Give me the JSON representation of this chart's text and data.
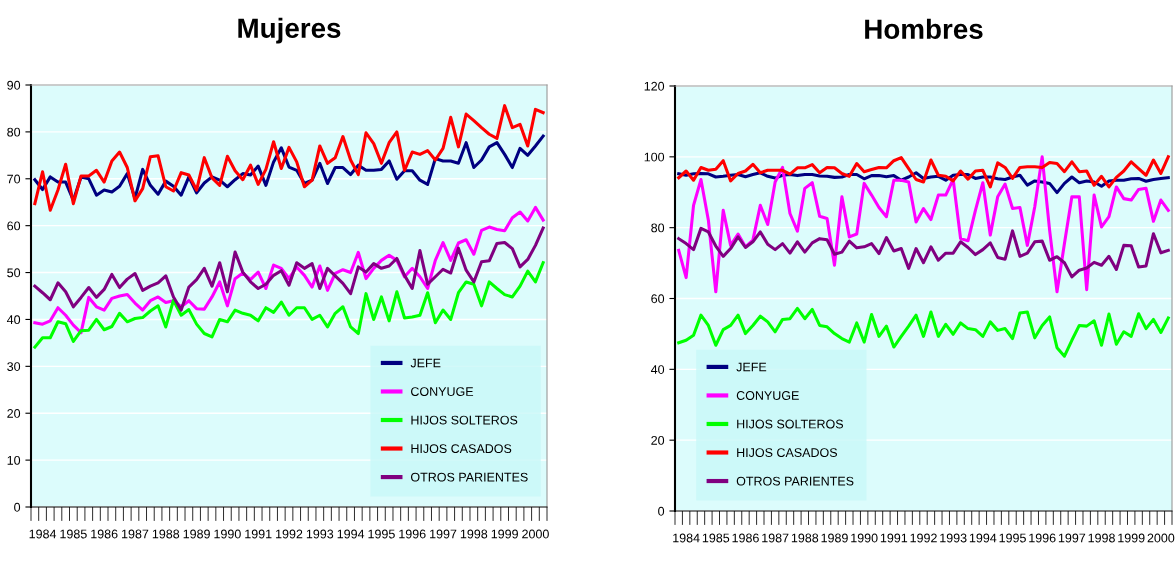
{
  "chart_data": [
    {
      "type": "line",
      "title": "Mujeres",
      "categories": [
        null,
        "1984",
        null,
        null,
        null,
        "1985",
        null,
        null,
        null,
        "1986",
        null,
        null,
        null,
        "1987",
        null,
        null,
        null,
        "1988",
        null,
        null,
        null,
        "1989",
        null,
        null,
        null,
        "1990",
        null,
        null,
        null,
        "1991",
        null,
        null,
        null,
        "1992",
        null,
        null,
        null,
        "1993",
        null,
        null,
        null,
        "1994",
        null,
        null,
        null,
        "1995",
        null,
        null,
        null,
        "1996",
        null,
        null,
        null,
        "1997",
        null,
        null,
        null,
        "1998",
        null,
        null,
        null,
        "1999",
        null,
        null,
        null,
        "2000",
        null
      ],
      "ylim": [
        0,
        90
      ],
      "yticks": [
        0,
        10,
        20,
        30,
        40,
        50,
        60,
        70,
        80,
        90
      ],
      "grid": "y",
      "legend": "bottom right",
      "series": [
        {
          "name": "JEFE",
          "color": "#000080",
          "values": [
            69.8,
            67.7,
            70.4,
            69.3,
            69.3,
            65.4,
            70.4,
            70,
            66.5,
            67.6,
            67.2,
            68.4,
            71.1,
            65.8,
            72,
            68.6,
            66.7,
            69.5,
            68.4,
            66.5,
            70.4,
            67,
            69.1,
            70.4,
            69.7,
            68.3,
            69.8,
            71.1,
            70.8,
            72.7,
            68.6,
            73.6,
            76.6,
            72.5,
            71.8,
            69,
            69.7,
            73.3,
            69,
            72.4,
            72.4,
            70.9,
            72.9,
            71.8,
            71.8,
            72,
            73.8,
            69.9,
            71.7,
            71.7,
            69.7,
            68.8,
            74.3,
            73.8,
            73.8,
            73.3,
            77.7,
            72.4,
            74,
            76.8,
            77.7,
            75.2,
            72.4,
            76.5,
            75,
            77,
            79.1
          ]
        },
        {
          "name": "CONYUGE",
          "color": "#ff00ff",
          "values": [
            39.3,
            39,
            39.7,
            42.5,
            40.9,
            38.8,
            37.2,
            44.7,
            42.7,
            42,
            44.5,
            45,
            45.3,
            43.5,
            42,
            44,
            44.8,
            43.6,
            44,
            42.7,
            44,
            42.3,
            42.2,
            44.8,
            48,
            42.9,
            48.7,
            49.9,
            48.5,
            50.1,
            46.6,
            51.6,
            50.9,
            48.7,
            51.2,
            49.4,
            46.9,
            51.4,
            46.2,
            49.8,
            50.6,
            50,
            54.3,
            48.7,
            50.9,
            52.6,
            53.7,
            52.6,
            49.1,
            50.9,
            49.1,
            46.6,
            52.6,
            56.4,
            52.6,
            56.3,
            57,
            53.9,
            59,
            59.7,
            59.2,
            58.9,
            61.7,
            62.9,
            61,
            63.9,
            61.2
          ]
        },
        {
          "name": "HIJOS SOLTEROS",
          "color": "#00ff00",
          "values": [
            34.1,
            36.1,
            36.1,
            39.5,
            39.1,
            35.3,
            37.6,
            37.7,
            40,
            37.8,
            38.5,
            41.3,
            39.5,
            40.2,
            40.4,
            41.8,
            42.9,
            38.4,
            44.1,
            40.9,
            42.1,
            39,
            37,
            36.3,
            40,
            39.5,
            42,
            41.3,
            40.9,
            39.7,
            42.5,
            41.5,
            43.7,
            40.9,
            42.5,
            42.5,
            40,
            40.9,
            38.4,
            41.3,
            42.7,
            38.4,
            37,
            45.5,
            40,
            44.8,
            39.7,
            45.9,
            40.3,
            40.5,
            40.9,
            45.7,
            39.3,
            42,
            40,
            45.7,
            48,
            47.5,
            42.9,
            48,
            46.6,
            45.3,
            44.8,
            47.1,
            50.3,
            48,
            52.1
          ]
        },
        {
          "name": "HIJOS CASADOS",
          "color": "#ff0000",
          "values": [
            64.7,
            71.5,
            63.3,
            67.6,
            73.1,
            64.7,
            70.6,
            70.6,
            71.8,
            69.3,
            73.8,
            75.7,
            72.4,
            65.3,
            67.9,
            74.7,
            74.9,
            68.3,
            67.4,
            71.3,
            70.8,
            67.6,
            74.5,
            70.2,
            68.6,
            74.8,
            71.7,
            69.8,
            72.9,
            68.8,
            72,
            77.9,
            72.2,
            76.7,
            73.6,
            68.3,
            69.7,
            77,
            73.3,
            74.5,
            79,
            74,
            70.9,
            79.8,
            77.5,
            73.3,
            77.7,
            80,
            71.8,
            75.7,
            75.2,
            76,
            74,
            76.5,
            83.1,
            76.8,
            83.8,
            82.4,
            80.9,
            79.5,
            78.6,
            85.6,
            80.9,
            81.6,
            77,
            84.8,
            84.1
          ]
        },
        {
          "name": "OTROS PARIENTES",
          "color": "#800080",
          "values": [
            47.1,
            45.7,
            44.2,
            47.8,
            45.9,
            42.7,
            44.7,
            46.8,
            44.7,
            46.4,
            49.6,
            46.8,
            48.6,
            49.8,
            46.2,
            47.1,
            47.8,
            49.3,
            44.8,
            42,
            46.9,
            48.5,
            50.9,
            47.1,
            52.1,
            45.9,
            54.4,
            50.1,
            48,
            46.6,
            47.5,
            49.4,
            50.4,
            47.3,
            52.1,
            50.9,
            51.9,
            46.6,
            50.9,
            49.3,
            47.7,
            45.5,
            51.2,
            50.1,
            51.9,
            50.9,
            51.4,
            53,
            49.4,
            46.6,
            54.7,
            47.5,
            49.1,
            50.7,
            49.9,
            55.2,
            50.5,
            48,
            52.3,
            52.5,
            56.2,
            56.4,
            55.1,
            51.2,
            52.8,
            55.8,
            59.5
          ]
        }
      ]
    },
    {
      "type": "line",
      "title": "Hombres",
      "categories": [
        null,
        "1984",
        null,
        null,
        null,
        "1985",
        null,
        null,
        null,
        "1986",
        null,
        null,
        null,
        "1987",
        null,
        null,
        null,
        "1988",
        null,
        null,
        null,
        "1989",
        null,
        null,
        null,
        "1990",
        null,
        null,
        null,
        "1991",
        null,
        null,
        null,
        "1992",
        null,
        null,
        null,
        "1993",
        null,
        null,
        null,
        "1994",
        null,
        null,
        null,
        "1995",
        null,
        null,
        null,
        "1996",
        null,
        null,
        null,
        "1997",
        null,
        null,
        null,
        "1998",
        null,
        null,
        null,
        "1999",
        null,
        null,
        null,
        "2000",
        null
      ],
      "ylim": [
        0,
        120
      ],
      "yticks": [
        0,
        20,
        40,
        60,
        80,
        100,
        120
      ],
      "grid": "y",
      "legend": "bottom left",
      "series": [
        {
          "name": "JEFE",
          "color": "#000080",
          "values": [
            95.2,
            94.8,
            95.2,
            95.3,
            95.2,
            94.3,
            94.5,
            94.8,
            95,
            94.4,
            95,
            95.5,
            94.5,
            94,
            94.8,
            95,
            94.7,
            95,
            95,
            94.6,
            94.5,
            94.2,
            94.3,
            95,
            95,
            93.8,
            94.7,
            94.7,
            94.4,
            94.7,
            93.4,
            94.3,
            95.5,
            93.9,
            94.3,
            94.5,
            93.4,
            94.8,
            95,
            95,
            93.9,
            94.3,
            94.3,
            93.8,
            93.6,
            94.3,
            94.8,
            92,
            93.2,
            92.9,
            92.5,
            89.9,
            92.5,
            94.3,
            92.7,
            93.2,
            92.9,
            91.7,
            93.2,
            93.4,
            93.4,
            93.8,
            93.9,
            93.1,
            93.6,
            93.9,
            94.1
          ]
        },
        {
          "name": "CONYUGE",
          "color": "#ff00ff",
          "values": [
            73.6,
            65.9,
            86.3,
            93.6,
            82.1,
            61.9,
            84.9,
            75,
            78.2,
            74.6,
            76.5,
            86.3,
            80.9,
            92.9,
            97,
            84,
            79,
            91.1,
            92.7,
            83.2,
            82.6,
            69.4,
            88.7,
            77.4,
            78.2,
            92.5,
            89.2,
            85.7,
            83.1,
            93.4,
            93.4,
            92.9,
            81.6,
            85.4,
            82.3,
            89.2,
            89.2,
            93.6,
            76.9,
            76.3,
            84.9,
            92.7,
            77.9,
            88.7,
            92.3,
            85.4,
            85.7,
            75,
            85.9,
            100,
            79.3,
            61.9,
            75.5,
            88.7,
            88.7,
            62.5,
            89.2,
            80.2,
            83.1,
            91.5,
            88.2,
            87.8,
            90.8,
            91.1,
            81.8,
            87.8,
            84.9
          ]
        },
        {
          "name": "HIJOS SOLTEROS",
          "color": "#00ff00",
          "values": [
            47.5,
            48.2,
            49.6,
            55.3,
            52.4,
            46.8,
            51.2,
            52.4,
            55.3,
            50.1,
            52.4,
            55,
            53.4,
            50.6,
            54.1,
            54.3,
            57.2,
            54.3,
            56.9,
            52.4,
            52,
            50.1,
            48.7,
            47.7,
            53.1,
            47.7,
            55.5,
            49.3,
            52.2,
            46.3,
            49.3,
            52.2,
            55.3,
            49.3,
            56.2,
            49.3,
            52.7,
            49.9,
            53.1,
            51.5,
            51.2,
            49.3,
            53.4,
            51,
            51.5,
            48.7,
            55.9,
            56.2,
            48.9,
            52.4,
            54.8,
            46.1,
            43.7,
            48.2,
            52.4,
            52.2,
            53.7,
            46.8,
            55.6,
            47.1,
            50.6,
            49.3,
            55.7,
            51.5,
            54.1,
            50.4,
            54.5
          ]
        },
        {
          "name": "HIJOS CASADOS",
          "color": "#ff0000",
          "values": [
            94.1,
            96,
            93.4,
            97,
            96.2,
            96.5,
            98.9,
            93.2,
            95.3,
            96,
            97.9,
            95.5,
            96.2,
            96.2,
            96.2,
            95.1,
            96.9,
            96.9,
            97.8,
            95.5,
            97,
            96.9,
            95.3,
            94.5,
            98.1,
            95.8,
            96.4,
            97,
            96.9,
            98.9,
            99.8,
            96.7,
            93.6,
            92.9,
            99.1,
            94.8,
            94.5,
            93.2,
            96,
            93.7,
            96,
            96.2,
            91.5,
            98.3,
            97,
            93.9,
            97,
            97.2,
            97.2,
            97,
            98.4,
            98.1,
            95.8,
            98.6,
            95.8,
            96,
            92,
            94.5,
            91.5,
            94.2,
            96,
            98.6,
            96.7,
            94.8,
            99.1,
            95.3,
            100
          ]
        },
        {
          "name": "OTROS PARIENTES",
          "color": "#800080",
          "values": [
            76.9,
            75.5,
            73.8,
            79.8,
            78.8,
            74.8,
            71.9,
            74.1,
            77.4,
            74.4,
            76,
            78.8,
            75.3,
            73.8,
            75.5,
            72.8,
            76,
            73.1,
            75.7,
            76.9,
            76.6,
            72.5,
            73.1,
            76.2,
            74.3,
            74.6,
            75.5,
            72.7,
            77.2,
            73.4,
            74.1,
            68.5,
            74.1,
            70.1,
            74.6,
            70.8,
            72.8,
            72.8,
            76,
            74.4,
            72.4,
            73.8,
            75.7,
            71.6,
            71.1,
            79.1,
            71.9,
            72.8,
            76,
            76.2,
            70.8,
            71.8,
            70.1,
            66.1,
            68,
            68.6,
            70.2,
            69.4,
            71.9,
            68.2,
            75,
            74.9,
            68.9,
            69.2,
            78.3,
            72.9,
            73.6
          ]
        }
      ]
    }
  ]
}
